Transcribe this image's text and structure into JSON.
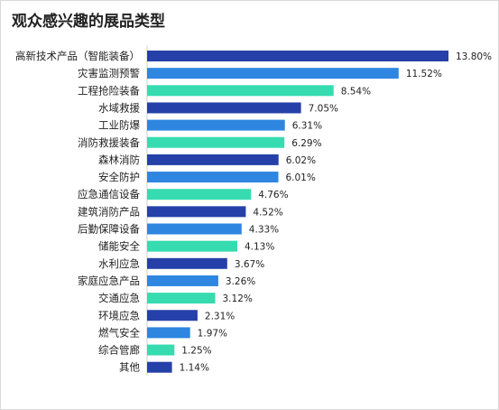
{
  "title": "观众感兴趣的展品类型",
  "colors": {
    "navy": "#2540a8",
    "blue": "#2e86e0",
    "teal": "#36dcb0",
    "axis": "#cfcfcf"
  },
  "chart_data": {
    "type": "bar",
    "orientation": "horizontal",
    "title": "观众感兴趣的展品类型",
    "xlabel": "",
    "ylabel": "",
    "grid": false,
    "legend": "none",
    "value_suffix": "%",
    "xlim": [
      0,
      14
    ],
    "categories": [
      "高新技术产品（智能装备）",
      "灾害监测预警",
      "工程抢险装备",
      "水域救援",
      "工业防爆",
      "消防救援装备",
      "森林消防",
      "安全防护",
      "应急通信设备",
      "建筑消防产品",
      "后勤保障设备",
      "储能安全",
      "水利应急",
      "家庭应急产品",
      "交通应急",
      "环境应急",
      "燃气安全",
      "综合管廊",
      "其他"
    ],
    "values": [
      13.8,
      11.52,
      8.54,
      7.05,
      6.31,
      6.29,
      6.02,
      6.01,
      4.76,
      4.52,
      4.33,
      4.13,
      3.67,
      3.26,
      3.12,
      2.31,
      1.97,
      1.25,
      1.14
    ],
    "value_labels": [
      "13.80%",
      "11.52%",
      "8.54%",
      "7.05%",
      "6.31%",
      "6.29%",
      "6.02%",
      "6.01%",
      "4.76%",
      "4.52%",
      "4.33%",
      "4.13%",
      "3.67%",
      "3.26%",
      "3.12%",
      "2.31%",
      "1.97%",
      "1.25%",
      "1.14%"
    ],
    "bar_colors": [
      "navy",
      "blue",
      "teal",
      "navy",
      "blue",
      "teal",
      "navy",
      "blue",
      "teal",
      "navy",
      "blue",
      "teal",
      "navy",
      "blue",
      "teal",
      "navy",
      "blue",
      "teal",
      "navy"
    ]
  }
}
